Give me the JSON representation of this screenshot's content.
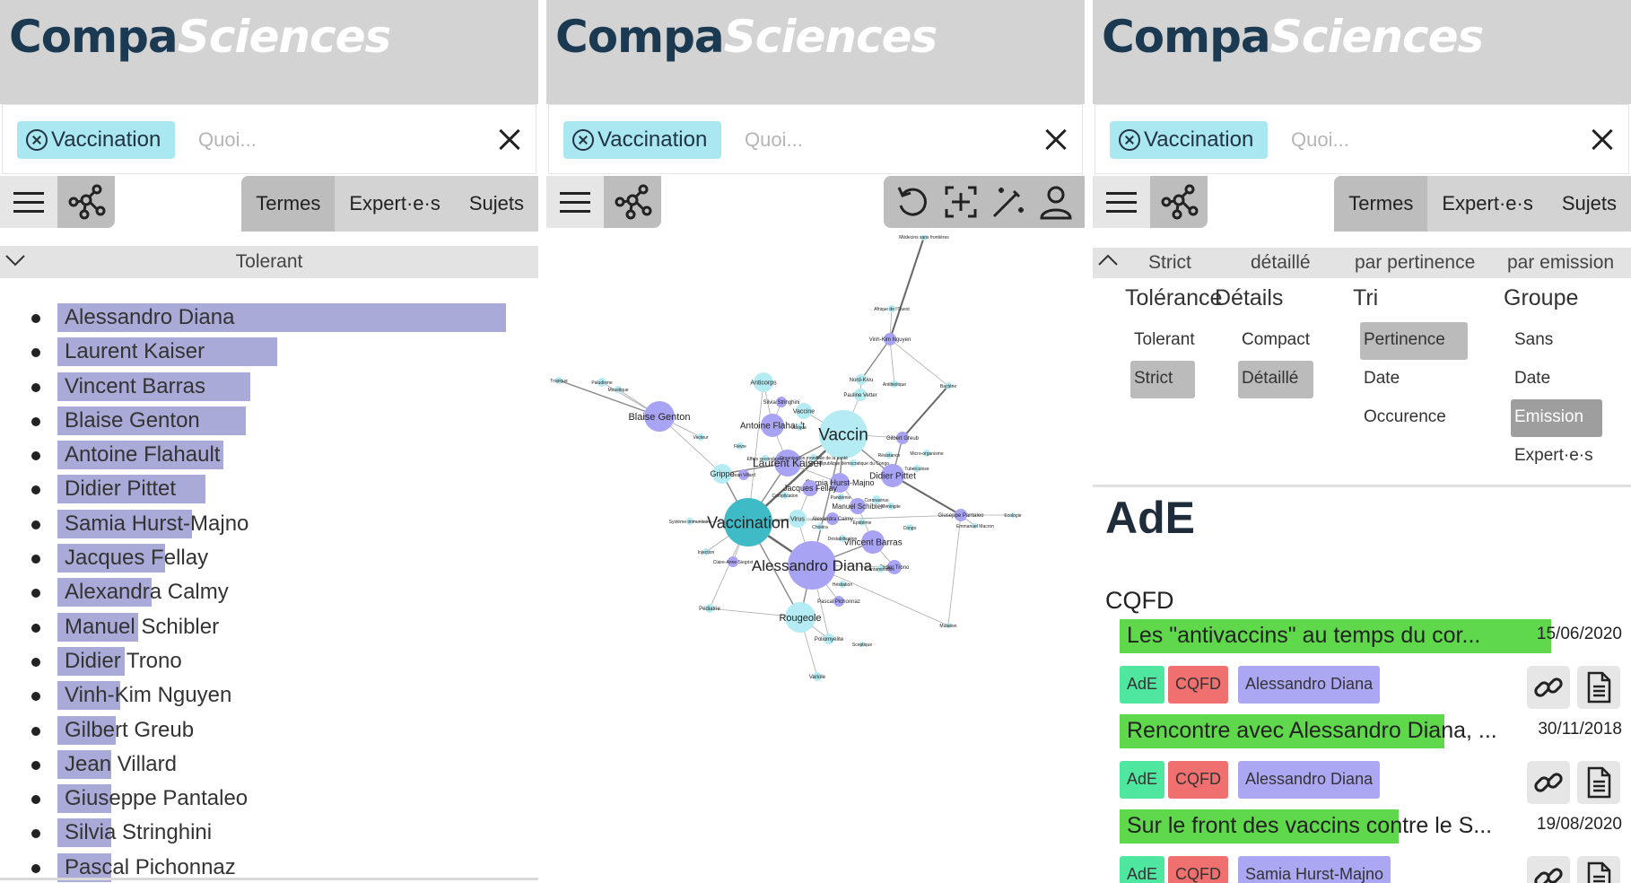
{
  "app": {
    "logo_part1": "Compa",
    "logo_part2": "Sciences",
    "search": {
      "chip_label": "Vaccination",
      "placeholder": "Quoi...",
      "value": ""
    },
    "tabs": [
      "Termes",
      "Expert·e·s",
      "Sujets"
    ]
  },
  "panel1": {
    "filter_label": "Tolerant",
    "experts": [
      {
        "name": "Alessandro Diana",
        "score": 1.0
      },
      {
        "name": "Laurent Kaiser",
        "score": 0.49
      },
      {
        "name": "Vincent Barras",
        "score": 0.43
      },
      {
        "name": "Blaise Genton",
        "score": 0.42
      },
      {
        "name": "Antoine Flahault",
        "score": 0.37
      },
      {
        "name": "Didier Pittet",
        "score": 0.33
      },
      {
        "name": "Samia Hurst-Majno",
        "score": 0.3
      },
      {
        "name": "Jacques Fellay",
        "score": 0.24
      },
      {
        "name": "Alexandra Calmy",
        "score": 0.21
      },
      {
        "name": "Manuel Schibler",
        "score": 0.18
      },
      {
        "name": "Didier Trono",
        "score": 0.15
      },
      {
        "name": "Vinh-Kim Nguyen",
        "score": 0.14
      },
      {
        "name": "Gilbert Greub",
        "score": 0.13
      },
      {
        "name": "Jean Villard",
        "score": 0.12
      },
      {
        "name": "Giuseppe Pantaleo",
        "score": 0.12
      },
      {
        "name": "Silvia Stringhini",
        "score": 0.12
      },
      {
        "name": "Pascal Pichonnaz",
        "score": 0.12
      }
    ]
  },
  "panel2": {
    "tools": [
      "undo-icon",
      "fit-view-icon",
      "magic-wand-icon",
      "person-icon"
    ],
    "nodes": [
      {
        "label": "Vaccination",
        "kind": "term-main"
      },
      {
        "label": "Alessandro Diana",
        "kind": "expert-main"
      },
      {
        "label": "Vaccin",
        "kind": "term-big"
      },
      {
        "label": "Blaise Genton",
        "kind": "expert"
      },
      {
        "label": "Rougeole",
        "kind": "term"
      },
      {
        "label": "Laurent Kaiser",
        "kind": "expert"
      },
      {
        "label": "Antoine Flahault",
        "kind": "expert"
      },
      {
        "label": "Didier Pittet",
        "kind": "expert"
      },
      {
        "label": "Vincent Barras",
        "kind": "expert"
      },
      {
        "label": "Grippe",
        "kind": "term"
      },
      {
        "label": "Samia Hurst-Majno",
        "kind": "expert"
      },
      {
        "label": "Jacques Fellay",
        "kind": "expert"
      },
      {
        "label": "Anticorps",
        "kind": "term"
      },
      {
        "label": "Vaccine",
        "kind": "term"
      },
      {
        "label": "Manuel Schibler",
        "kind": "expert"
      },
      {
        "label": "Vinh-Kim Nguyen",
        "kind": "expert"
      },
      {
        "label": "Giuseppe Pantaleo",
        "kind": "expert"
      },
      {
        "label": "Gilbert Greub",
        "kind": "expert"
      },
      {
        "label": "Pauline Vetter",
        "kind": "term"
      },
      {
        "label": "Nord-Kivu",
        "kind": "term"
      },
      {
        "label": "Médecins sans frontières",
        "kind": "term"
      },
      {
        "label": "Bactérie",
        "kind": "term"
      },
      {
        "label": "Antibiotique",
        "kind": "term"
      },
      {
        "label": "Didier Trono",
        "kind": "expert"
      },
      {
        "label": "Poliomyélite",
        "kind": "term"
      },
      {
        "label": "Variole",
        "kind": "term"
      },
      {
        "label": "Pédiatrie",
        "kind": "term"
      },
      {
        "label": "Injection",
        "kind": "term"
      },
      {
        "label": "Système immunitaire",
        "kind": "term"
      },
      {
        "label": "Virus",
        "kind": "term"
      },
      {
        "label": "Alexandra Calmy",
        "kind": "expert"
      },
      {
        "label": "Silvia Stringhini",
        "kind": "expert"
      },
      {
        "label": "Mutation",
        "kind": "term"
      },
      {
        "label": "Paludisme",
        "kind": "term"
      },
      {
        "label": "Tropique",
        "kind": "term"
      },
      {
        "label": "Moustique",
        "kind": "term"
      },
      {
        "label": "Vecteur",
        "kind": "term"
      },
      {
        "label": "Fièvre",
        "kind": "term"
      },
      {
        "label": "Afrique",
        "kind": "term"
      },
      {
        "label": "Pascal Pichonnaz",
        "kind": "expert"
      },
      {
        "label": "Hésitation",
        "kind": "term"
      },
      {
        "label": "Emmanuel Macron",
        "kind": "term"
      },
      {
        "label": "Ecologie",
        "kind": "term"
      },
      {
        "label": "Claire-Anne Siegrist",
        "kind": "expert"
      },
      {
        "label": "Jean Villard",
        "kind": "expert"
      },
      {
        "label": "Micro-organisme",
        "kind": "term"
      },
      {
        "label": "Tuberculose",
        "kind": "term"
      },
      {
        "label": "Résistance",
        "kind": "term"
      },
      {
        "label": "Coronavirus",
        "kind": "term"
      },
      {
        "label": "Méningite",
        "kind": "term"
      },
      {
        "label": "Congo",
        "kind": "term"
      },
      {
        "label": "Sceptique",
        "kind": "term"
      },
      {
        "label": "Déstabilisation",
        "kind": "term"
      },
      {
        "label": "Contamination",
        "kind": "term"
      },
      {
        "label": "Epidémie",
        "kind": "term"
      },
      {
        "label": "Choléra",
        "kind": "term"
      },
      {
        "label": "Pandémie",
        "kind": "term"
      },
      {
        "label": "Complication",
        "kind": "term"
      },
      {
        "label": "Effets secondaires",
        "kind": "term"
      },
      {
        "label": "Organisation mondiale de la santé",
        "kind": "term"
      },
      {
        "label": "République démocratique du Congo",
        "kind": "term"
      },
      {
        "label": "Afrique de l'Ouest",
        "kind": "term"
      }
    ]
  },
  "panel3": {
    "header": {
      "arrow": "collapse",
      "tolerance": "Strict",
      "details": "détaillé",
      "sort": "par pertinence",
      "group": "par emission"
    },
    "columns": [
      {
        "title": "Tolérance",
        "options": [
          "Tolerant",
          "Strict"
        ],
        "selected": "Strict"
      },
      {
        "title": "Détails",
        "options": [
          "Compact",
          "Détaillé"
        ],
        "selected": "Détaillé"
      },
      {
        "title": "Tri",
        "options": [
          "Pertinence",
          "Date",
          "Occurence"
        ],
        "selected": "Pertinence"
      },
      {
        "title": "Groupe",
        "options": [
          "Sans",
          "Date",
          "Emission",
          "Expert·e·s"
        ],
        "selected": "Emission"
      }
    ],
    "group_title": "AdE",
    "section_title": "CQFD",
    "results": [
      {
        "title": "Les \"antivaccins\" au temps du cor...",
        "date": "15/06/2020",
        "relevance": 0.85,
        "tags": [
          "AdE",
          "CQFD"
        ],
        "expert": "Alessandro Diana"
      },
      {
        "title": "Rencontre avec Alessandro Diana, ...",
        "date": "30/11/2018",
        "relevance": 0.64,
        "tags": [
          "AdE",
          "CQFD"
        ],
        "expert": "Alessandro Diana"
      },
      {
        "title": "Sur le front des vaccins contre le S...",
        "date": "19/08/2020",
        "relevance": 0.55,
        "tags": [
          "AdE",
          "CQFD"
        ],
        "expert": "Samia Hurst-Majno"
      }
    ]
  },
  "colors": {
    "header_bg": "#d3d3d3",
    "logo_dark": "#1b3a52",
    "chip_bg": "#a9e8f0",
    "expert_bar": "#aaaad8",
    "term_node": "#b5ebf2",
    "expert_node": "#a8a3f2",
    "main_node": "#3fbac7",
    "result_bar": "#5fd84c",
    "tag_ade": "#4fe6a0",
    "tag_cqfd": "#f07070",
    "tag_person": "#aba7f2"
  }
}
